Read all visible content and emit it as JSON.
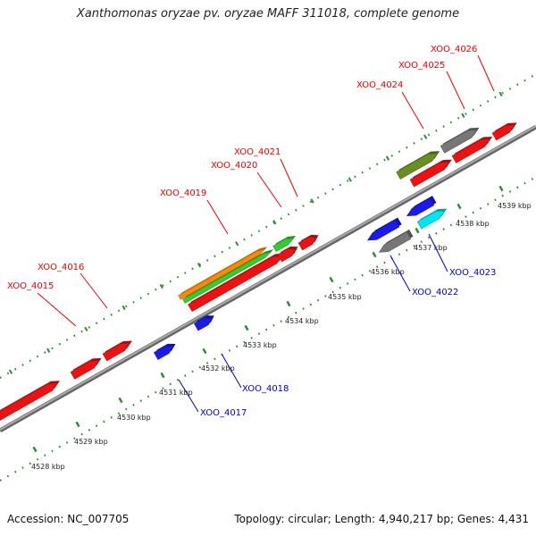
{
  "title": "Xanthomonas oryzae pv. oryzae MAFF 311018, complete genome",
  "footer": {
    "accession": "Accession: NC_007705",
    "topology": "Topology: circular; Length: 4,940,217 bp; Genes: 4,431"
  },
  "colors": {
    "background": "#ffffff",
    "backbone": "#999999",
    "tick": "#2e8b2e",
    "label_top": "#ee0000",
    "label_bottom": "#0000cc",
    "red": "#ee1111",
    "blue": "#1a1aee",
    "green": "#33cc33",
    "orange": "#ff8800",
    "olive": "#6b8e23",
    "gray": "#777777",
    "cyan": "#00e5ee"
  },
  "scale": {
    "unit": "kbp",
    "labels": [
      "4528 kbp",
      "4529 kbp",
      "4530 kbp",
      "4531 kbp",
      "4532 kbp",
      "4533 kbp",
      "4534 kbp",
      "4535 kbp",
      "4536 kbp",
      "4537 kbp",
      "4538 kbp",
      "4539 kbp"
    ]
  },
  "genes_top": [
    "XOO_4015",
    "XOO_4016",
    "XOO_4019",
    "XOO_4020",
    "XOO_4021",
    "XOO_4024",
    "XOO_4025",
    "XOO_4026"
  ],
  "genes_bottom": [
    "XOO_4017",
    "XOO_4018",
    "XOO_4022",
    "XOO_4023"
  ]
}
